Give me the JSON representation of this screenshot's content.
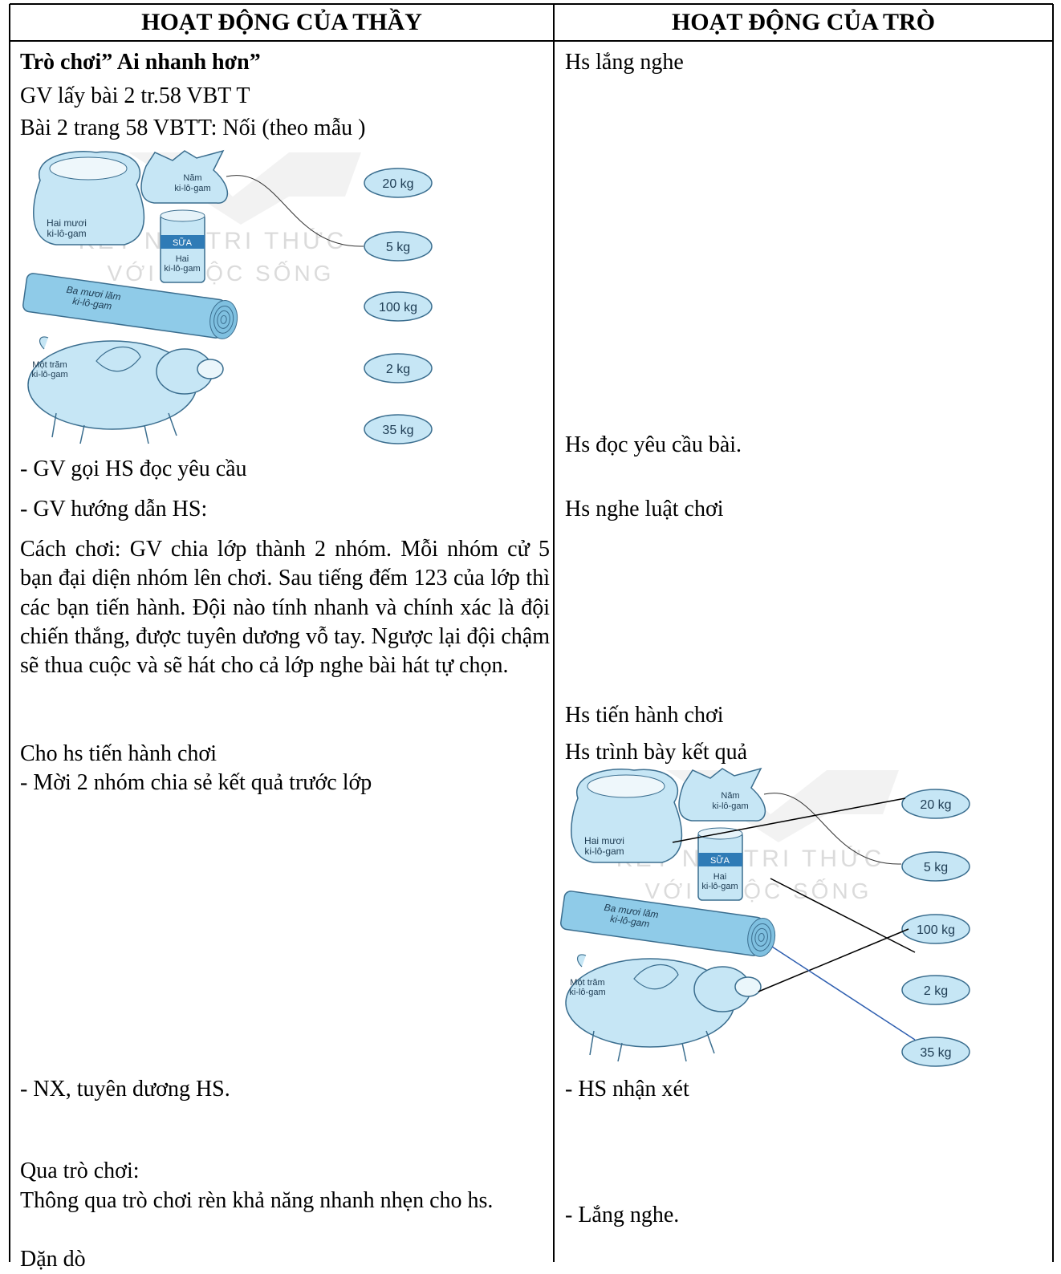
{
  "headers": [
    "HOẠT ĐỘNG CỦA THẦY",
    "HOẠT ĐỘNG CỦA TRÒ"
  ],
  "teacher": {
    "game_title": "Trò chơi” Ai nhanh hơn”",
    "intro": [
      "GV lấy bài 2 tr.58 VBT T",
      "Bài 2 trang 58 VBTT: Nối (theo mẫu )"
    ],
    "steps": [
      "- GV gọi HS đọc yêu cầu",
      "- GV hướng dẫn HS:"
    ],
    "rules": "Cách chơi: GV chia lớp thành 2 nhóm. Mỗi nhóm cử 5 bạn đại diện nhóm lên chơi. Sau tiếng đếm 123 của lớp thì các bạn tiến hành. Đội nào tính nhanh và chính xác là đội chiến thắng, được tuyên dương vỗ tay. Ngược lại đội chậm sẽ thua cuộc và sẽ hát cho cả lớp nghe bài hát tự chọn.",
    "play": [
      "Cho hs tiến hành chơi",
      "- Mời 2 nhóm chia sẻ kết quả trước lớp"
    ],
    "praise": "- NX, tuyên dương HS.",
    "summary_title": "Qua trò chơi:",
    "summary": "Thông qua trò chơi rèn khả năng nhanh nhẹn cho hs.",
    "closing": "Dặn dò"
  },
  "student": [
    "Hs lắng nghe",
    "Hs đọc yêu cầu bài.",
    "Hs nghe luật chơi",
    "Hs tiến  hành chơi",
    "Hs trình bày kết quả",
    "- HS nhận xét",
    "- Lắng nghe."
  ],
  "figure": {
    "sack": [
      "Hai mươi",
      "ki-lô-gam"
    ],
    "bag": [
      "Năm",
      "ki-lô-gam"
    ],
    "can": [
      "SỮA",
      "Hai",
      "ki-lô-gam"
    ],
    "log": [
      "Ba mươi lăm",
      "ki-lô-gam"
    ],
    "pig": [
      "Một trăm",
      "ki-lô-gam"
    ],
    "weights": [
      "20 kg",
      "5 kg",
      "100 kg",
      "2 kg",
      "35 kg"
    ],
    "watermark": [
      "KẾT NỐI TRI THỨC",
      "VỚI CUỘC SỐNG"
    ]
  }
}
